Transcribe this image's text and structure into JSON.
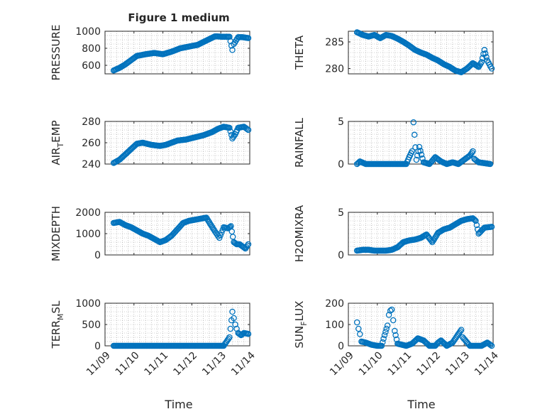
{
  "figure": {
    "title": "Figure 1 medium"
  },
  "colors": {
    "marker": "#0072BD",
    "axis": "#262626",
    "grid": "#8c8c8c"
  },
  "x_axis": {
    "label": "Time",
    "ticks": [
      "11/09",
      "11/10",
      "11/11",
      "11/12",
      "11/13",
      "11/14"
    ],
    "tick_values": [
      0,
      1,
      2,
      3,
      4,
      5
    ],
    "range": [
      0,
      5
    ]
  },
  "chart_data": [
    {
      "type": "scatter",
      "title": "Figure 1 medium",
      "ylabel": "PRESSURE",
      "ylim": [
        500,
        1000
      ],
      "yticks": [
        600,
        800,
        1000
      ],
      "yticklabels": [
        "600",
        "800",
        "1000"
      ],
      "x": [
        0.3,
        0.5,
        0.7,
        0.9,
        1.1,
        1.4,
        1.7,
        2.0,
        2.3,
        2.6,
        2.9,
        3.2,
        3.5,
        3.8,
        4.1,
        4.3,
        4.4,
        4.45,
        4.6,
        4.75,
        4.95
      ],
      "y": [
        540,
        570,
        610,
        660,
        710,
        730,
        745,
        730,
        760,
        800,
        820,
        840,
        890,
        940,
        935,
        935,
        780,
        850,
        930,
        930,
        920
      ]
    },
    {
      "type": "scatter",
      "title": "",
      "ylabel": "THETA",
      "ylim": [
        279,
        287
      ],
      "yticks": [
        280,
        285
      ],
      "yticklabels": [
        "280",
        "285"
      ],
      "x": [
        0.3,
        0.5,
        0.7,
        0.9,
        1.1,
        1.3,
        1.5,
        1.7,
        1.9,
        2.1,
        2.3,
        2.5,
        2.7,
        2.9,
        3.1,
        3.3,
        3.5,
        3.7,
        3.9,
        4.1,
        4.3,
        4.5,
        4.6,
        4.7,
        4.8,
        4.95
      ],
      "y": [
        286.8,
        286.3,
        286.0,
        286.3,
        285.7,
        286.3,
        286.1,
        285.6,
        285.0,
        284.3,
        283.5,
        283.0,
        282.6,
        282.0,
        281.5,
        280.8,
        280.3,
        279.6,
        279.3,
        280.0,
        281.0,
        280.3,
        281.2,
        283.5,
        281.5,
        280.0
      ]
    },
    {
      "type": "scatter",
      "title": "",
      "ylabel": "AIR_TEMP",
      "ylim": [
        240,
        280
      ],
      "yticks": [
        240,
        260,
        280
      ],
      "yticklabels": [
        "240",
        "260",
        "280"
      ],
      "x": [
        0.3,
        0.5,
        0.7,
        0.9,
        1.1,
        1.3,
        1.6,
        1.9,
        2.1,
        2.3,
        2.5,
        2.8,
        3.1,
        3.4,
        3.7,
        3.9,
        4.1,
        4.3,
        4.4,
        4.5,
        4.6,
        4.8,
        4.95
      ],
      "y": [
        241,
        244,
        249,
        254,
        259,
        260,
        258,
        257,
        258,
        260,
        262,
        263,
        265,
        267,
        270,
        273,
        275,
        274,
        264,
        268,
        274,
        275,
        272
      ]
    },
    {
      "type": "scatter",
      "title": "",
      "ylabel": "RAINFALL",
      "ylim": [
        0,
        5
      ],
      "yticks": [
        0,
        5
      ],
      "yticklabels": [
        "0",
        "5"
      ],
      "x": [
        0.3,
        0.4,
        0.6,
        0.9,
        1.2,
        1.5,
        1.8,
        2.0,
        2.1,
        2.2,
        2.25,
        2.35,
        2.45,
        2.6,
        2.8,
        3.0,
        3.2,
        3.4,
        3.6,
        3.8,
        4.0,
        4.2,
        4.3,
        4.35,
        4.5,
        4.7,
        4.9
      ],
      "y": [
        0,
        0.3,
        0,
        0,
        0,
        0,
        0,
        0,
        0.8,
        1.5,
        4.9,
        0.5,
        2.0,
        0.2,
        0,
        0.8,
        0.3,
        0,
        0.2,
        0,
        0.5,
        1.0,
        1.5,
        0.6,
        0.2,
        0.1,
        0
      ]
    },
    {
      "type": "scatter",
      "title": "",
      "ylabel": "MIXDEPTH",
      "ylim": [
        0,
        2000
      ],
      "yticks": [
        0,
        1000,
        2000
      ],
      "yticklabels": [
        "0",
        "1000",
        "2000"
      ],
      "x": [
        0.3,
        0.5,
        0.7,
        0.9,
        1.1,
        1.3,
        1.5,
        1.7,
        1.9,
        2.1,
        2.3,
        2.5,
        2.7,
        2.9,
        3.1,
        3.3,
        3.5,
        3.8,
        3.95,
        4.1,
        4.25,
        4.35,
        4.45,
        4.55,
        4.65,
        4.75,
        4.85,
        4.95
      ],
      "y": [
        1500,
        1550,
        1400,
        1300,
        1150,
        1000,
        900,
        750,
        600,
        700,
        900,
        1200,
        1500,
        1600,
        1650,
        1700,
        1750,
        1100,
        800,
        1300,
        1250,
        1350,
        600,
        500,
        500,
        400,
        300,
        500
      ]
    },
    {
      "type": "scatter",
      "title": "",
      "ylabel": "H2OMIXRA",
      "ylim": [
        0,
        5
      ],
      "yticks": [
        0,
        5
      ],
      "yticklabels": [
        "0",
        "5"
      ],
      "x": [
        0.3,
        0.5,
        0.7,
        0.9,
        1.1,
        1.3,
        1.5,
        1.7,
        1.9,
        2.1,
        2.3,
        2.5,
        2.7,
        2.9,
        3.1,
        3.3,
        3.5,
        3.7,
        3.9,
        4.1,
        4.3,
        4.4,
        4.5,
        4.7,
        4.95
      ],
      "y": [
        0.5,
        0.6,
        0.6,
        0.5,
        0.5,
        0.5,
        0.6,
        0.9,
        1.5,
        1.7,
        1.8,
        2.0,
        2.4,
        1.5,
        2.6,
        3.0,
        3.2,
        3.6,
        4.0,
        4.2,
        4.3,
        4.0,
        2.5,
        3.2,
        3.3
      ]
    },
    {
      "type": "scatter",
      "title": "",
      "ylabel": "TERR_MSL",
      "ylim": [
        0,
        1000
      ],
      "yticks": [
        0,
        500,
        1000
      ],
      "yticklabels": [
        "0",
        "500",
        "1000"
      ],
      "x": [
        0.3,
        0.6,
        0.9,
        1.2,
        1.5,
        1.8,
        2.1,
        2.4,
        2.7,
        3.0,
        3.3,
        3.6,
        3.9,
        4.1,
        4.3,
        4.4,
        4.45,
        4.5,
        4.55,
        4.6,
        4.7,
        4.8,
        4.95
      ],
      "y": [
        0,
        0,
        0,
        0,
        0,
        0,
        0,
        0,
        0,
        0,
        0,
        0,
        0,
        0,
        200,
        800,
        650,
        500,
        400,
        300,
        250,
        300,
        280
      ]
    },
    {
      "type": "scatter",
      "title": "",
      "ylabel": "SUN_FLUX",
      "ylim": [
        0,
        200
      ],
      "yticks": [
        0,
        100,
        200
      ],
      "yticklabels": [
        "0",
        "100",
        "200"
      ],
      "x": [
        0.3,
        0.35,
        0.4,
        0.45,
        0.6,
        0.8,
        1.0,
        1.15,
        1.25,
        1.35,
        1.4,
        1.45,
        1.5,
        1.55,
        1.6,
        1.7,
        2.0,
        2.2,
        2.4,
        2.6,
        2.8,
        3.0,
        3.1,
        3.2,
        3.4,
        3.6,
        3.8,
        3.9,
        3.95,
        4.2,
        4.4,
        4.6,
        4.8,
        4.95
      ],
      "y": [
        110,
        80,
        55,
        20,
        15,
        5,
        0,
        0,
        50,
        95,
        145,
        165,
        170,
        120,
        70,
        10,
        0,
        10,
        35,
        25,
        0,
        0,
        15,
        25,
        0,
        15,
        55,
        75,
        40,
        0,
        0,
        0,
        15,
        0
      ]
    }
  ]
}
